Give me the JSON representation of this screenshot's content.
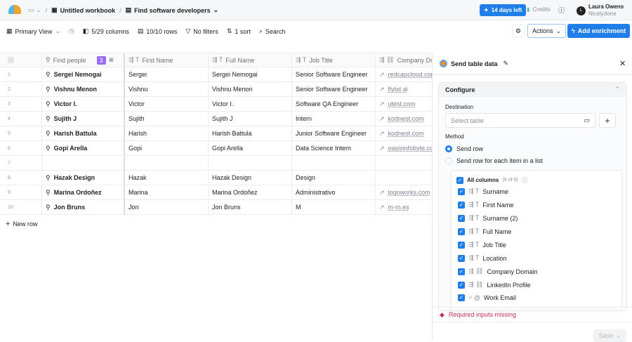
{
  "topbar": {
    "breadcrumb_workbook": "Untitled workbook",
    "breadcrumb_table": "Find software developers",
    "trial": "14 days left",
    "credits": "Credits",
    "user_initial": "L",
    "user_name": "Laura Owens",
    "user_org": "Nicelydone"
  },
  "toolbar": {
    "view": "Primary View",
    "columns": "5/29 columns",
    "rows": "10/10 rows",
    "filters": "No filters",
    "sort": "1 sort",
    "search": "Search",
    "actions": "Actions",
    "add_enrichment": "Add enrichment",
    "accent": "#1f7ee8"
  },
  "table": {
    "headers": [
      "Find people",
      "First Name",
      "Full Name",
      "Job Title",
      "Company Do"
    ],
    "find_badge": "3",
    "rows": [
      [
        "1",
        "Sergei Nemogai",
        "Sergei",
        "Sergei Nemogai",
        "Senior Software Engineer",
        "redcapcloud.com"
      ],
      [
        "2",
        "Vishnu Menon",
        "Vishnu",
        "Vishnu Menon",
        "Senior Software Engineer",
        "flytxt.ai"
      ],
      [
        "3",
        "Victor I.",
        "Victor",
        "Victor I.",
        "Software QA Engineer",
        "utest.com"
      ],
      [
        "4",
        "Sujith J",
        "Sujith",
        "Sujith J",
        "Intern",
        "kodnest.com"
      ],
      [
        "5",
        "Harish Battula",
        "Harish",
        "Harish Battula",
        "Junior Software Engineer",
        "kodnest.com"
      ],
      [
        "6",
        "Gopi Arella",
        "Gopi",
        "Gopi Arella",
        "Data Science Intern",
        "oasisinfobyte.com"
      ],
      [
        "7",
        "",
        "",
        "",
        "",
        ""
      ],
      [
        "8",
        "Hazak Design",
        "Hazak",
        "Hazak Design",
        "Design",
        ""
      ],
      [
        "9",
        "Marina Ordoñez",
        "Marina",
        "Marina Ordoñez",
        "Administrativo",
        "logoworks.com"
      ],
      [
        "10",
        "Jon Bruns",
        "Jon",
        "Jon Bruns",
        "M",
        "m-m.es"
      ]
    ],
    "new_row": "New row"
  },
  "panel": {
    "title": "Send table data",
    "configure": "Configure",
    "destination_label": "Destination",
    "destination_placeholder": "Select table",
    "method_label": "Method",
    "method_options": [
      "Send row",
      "Send row for each item in a list"
    ],
    "method_selected": "Send row",
    "all_columns": "All columns",
    "all_columns_count": "(9 of 9)",
    "columns": [
      {
        "name": "Surname",
        "type": "T"
      },
      {
        "name": "First Name",
        "type": "T"
      },
      {
        "name": "Surname (2)",
        "type": "T"
      },
      {
        "name": "Full Name",
        "type": "T"
      },
      {
        "name": "Job Title",
        "type": "T"
      },
      {
        "name": "Location",
        "type": "T"
      },
      {
        "name": "Company Domain",
        "type": "link"
      },
      {
        "name": "LinkedIn Profile",
        "type": "link"
      },
      {
        "name": "Work Email",
        "type": "@"
      }
    ],
    "error": "Required inputs missing",
    "error_color": "#c9304f",
    "save": "Save"
  }
}
